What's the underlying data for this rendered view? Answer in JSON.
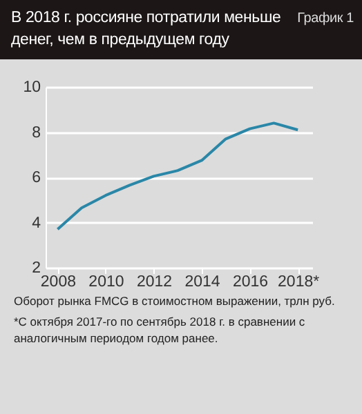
{
  "chart_data": {
    "type": "line",
    "title": "В 2018 г. россияне потратили меньше денег, чем в предыдущем году",
    "annotations": [
      "График 1",
      "Оборот рынка FMCG в стоимостном выражении, трлн руб.",
      "*С октября 2017-го по сентябрь 2018 г. в сравнении с аналогичным периодом годом ранее."
    ],
    "x": [
      2008,
      2009,
      2010,
      2011,
      2012,
      2013,
      2014,
      2015,
      2016,
      2017,
      2018
    ],
    "series": [
      {
        "color": "#2a87a8",
        "values": [
          3.7,
          4.65,
          5.2,
          5.65,
          6.05,
          6.3,
          6.75,
          7.7,
          8.15,
          8.4,
          8.1
        ]
      }
    ],
    "xlim": [
      2007.5,
      2018.6
    ],
    "xticks": [
      2008,
      2010,
      2012,
      2014,
      2016,
      {
        "value": 2018,
        "label": "2018*"
      }
    ],
    "ylim": [
      2,
      10
    ],
    "yticks": [
      2,
      4,
      6,
      8,
      10
    ],
    "grid": "y",
    "legend": false,
    "marker": "none",
    "line_style": "solid"
  }
}
